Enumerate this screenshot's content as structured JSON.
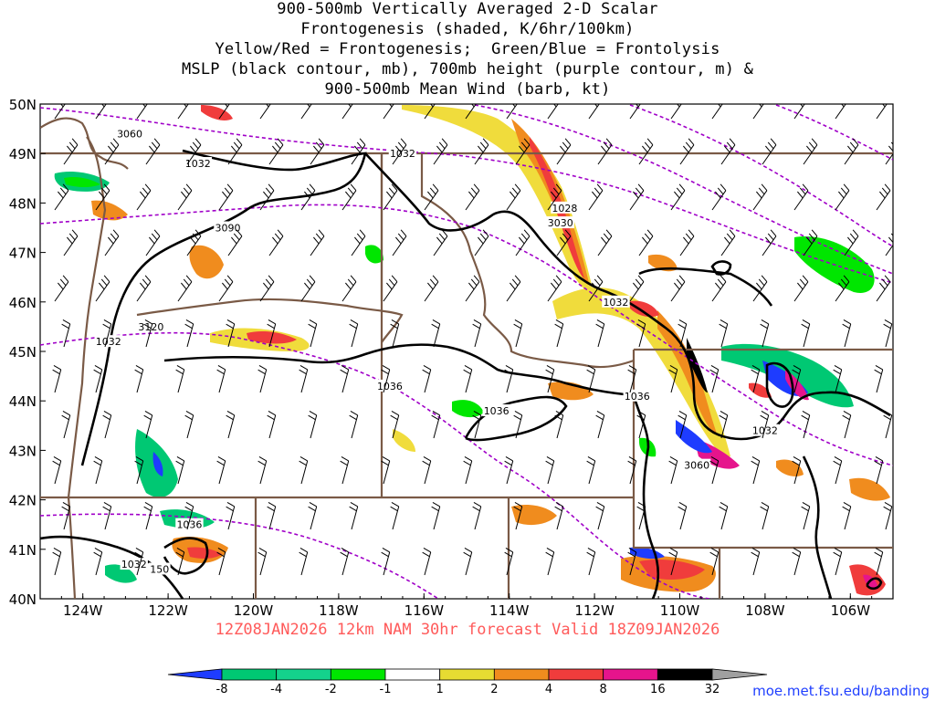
{
  "title": {
    "lines": [
      "900-500mb Vertically Averaged 2-D Scalar",
      "Frontogenesis (shaded, K/6hr/100km)",
      "Yellow/Red = Frontogenesis;  Green/Blue = Frontolysis",
      "MSLP (black contour, mb), 700mb height (purple contour, m) &",
      "900-500mb Mean Wind (barb, kt)"
    ]
  },
  "subtitle": "12Z08JAN2026 12km NAM 30hr forecast Valid 18Z09JAN2026",
  "credit": "moe.met.fsu.edu/banding",
  "map": {
    "lat_labels": [
      "50N",
      "49N",
      "48N",
      "47N",
      "46N",
      "45N",
      "44N",
      "43N",
      "42N",
      "41N",
      "40N"
    ],
    "lon_labels": [
      "124W",
      "122W",
      "120W",
      "118W",
      "116W",
      "114W",
      "112W",
      "110W",
      "108W",
      "106W"
    ],
    "contour_labels": [
      {
        "text": "3060",
        "lon": -122.9,
        "lat": 49.4
      },
      {
        "text": "1032",
        "lon": -121.3,
        "lat": 48.8
      },
      {
        "text": "1032",
        "lon": -116.5,
        "lat": 49.0
      },
      {
        "text": "3090",
        "lon": -120.6,
        "lat": 47.5
      },
      {
        "text": "1028",
        "lon": -112.7,
        "lat": 47.9
      },
      {
        "text": "3030",
        "lon": -112.8,
        "lat": 47.6
      },
      {
        "text": "1032",
        "lon": -111.5,
        "lat": 46.0
      },
      {
        "text": "3120",
        "lon": -122.4,
        "lat": 45.5
      },
      {
        "text": "1032",
        "lon": -123.4,
        "lat": 45.2
      },
      {
        "text": "1036",
        "lon": -116.8,
        "lat": 44.3
      },
      {
        "text": "1036",
        "lon": -114.3,
        "lat": 43.8
      },
      {
        "text": "1036",
        "lon": -111.0,
        "lat": 44.1
      },
      {
        "text": "1032",
        "lon": -108.0,
        "lat": 43.4
      },
      {
        "text": "3060",
        "lon": -109.6,
        "lat": 42.7
      },
      {
        "text": "1036",
        "lon": -121.5,
        "lat": 41.5
      },
      {
        "text": "1032",
        "lon": -122.8,
        "lat": 40.7
      },
      {
        "text": "150",
        "lon": -122.2,
        "lat": 40.6
      }
    ]
  },
  "colorbar": {
    "labels": [
      "-8",
      "-4",
      "-2",
      "-1",
      "1",
      "2",
      "4",
      "8",
      "16",
      "32"
    ],
    "colors": [
      "#1e3cff",
      "#00c873",
      "#14d28c",
      "#00e600",
      "#ffffff",
      "#e6dc32",
      "#f08c1e",
      "#f03c3c",
      "#e6148c",
      "#000000",
      "#a0a0a0"
    ]
  },
  "colors": {
    "mslp_contour": "#000000",
    "height_contour": "#a000c8",
    "borders": "#7a5a46"
  }
}
